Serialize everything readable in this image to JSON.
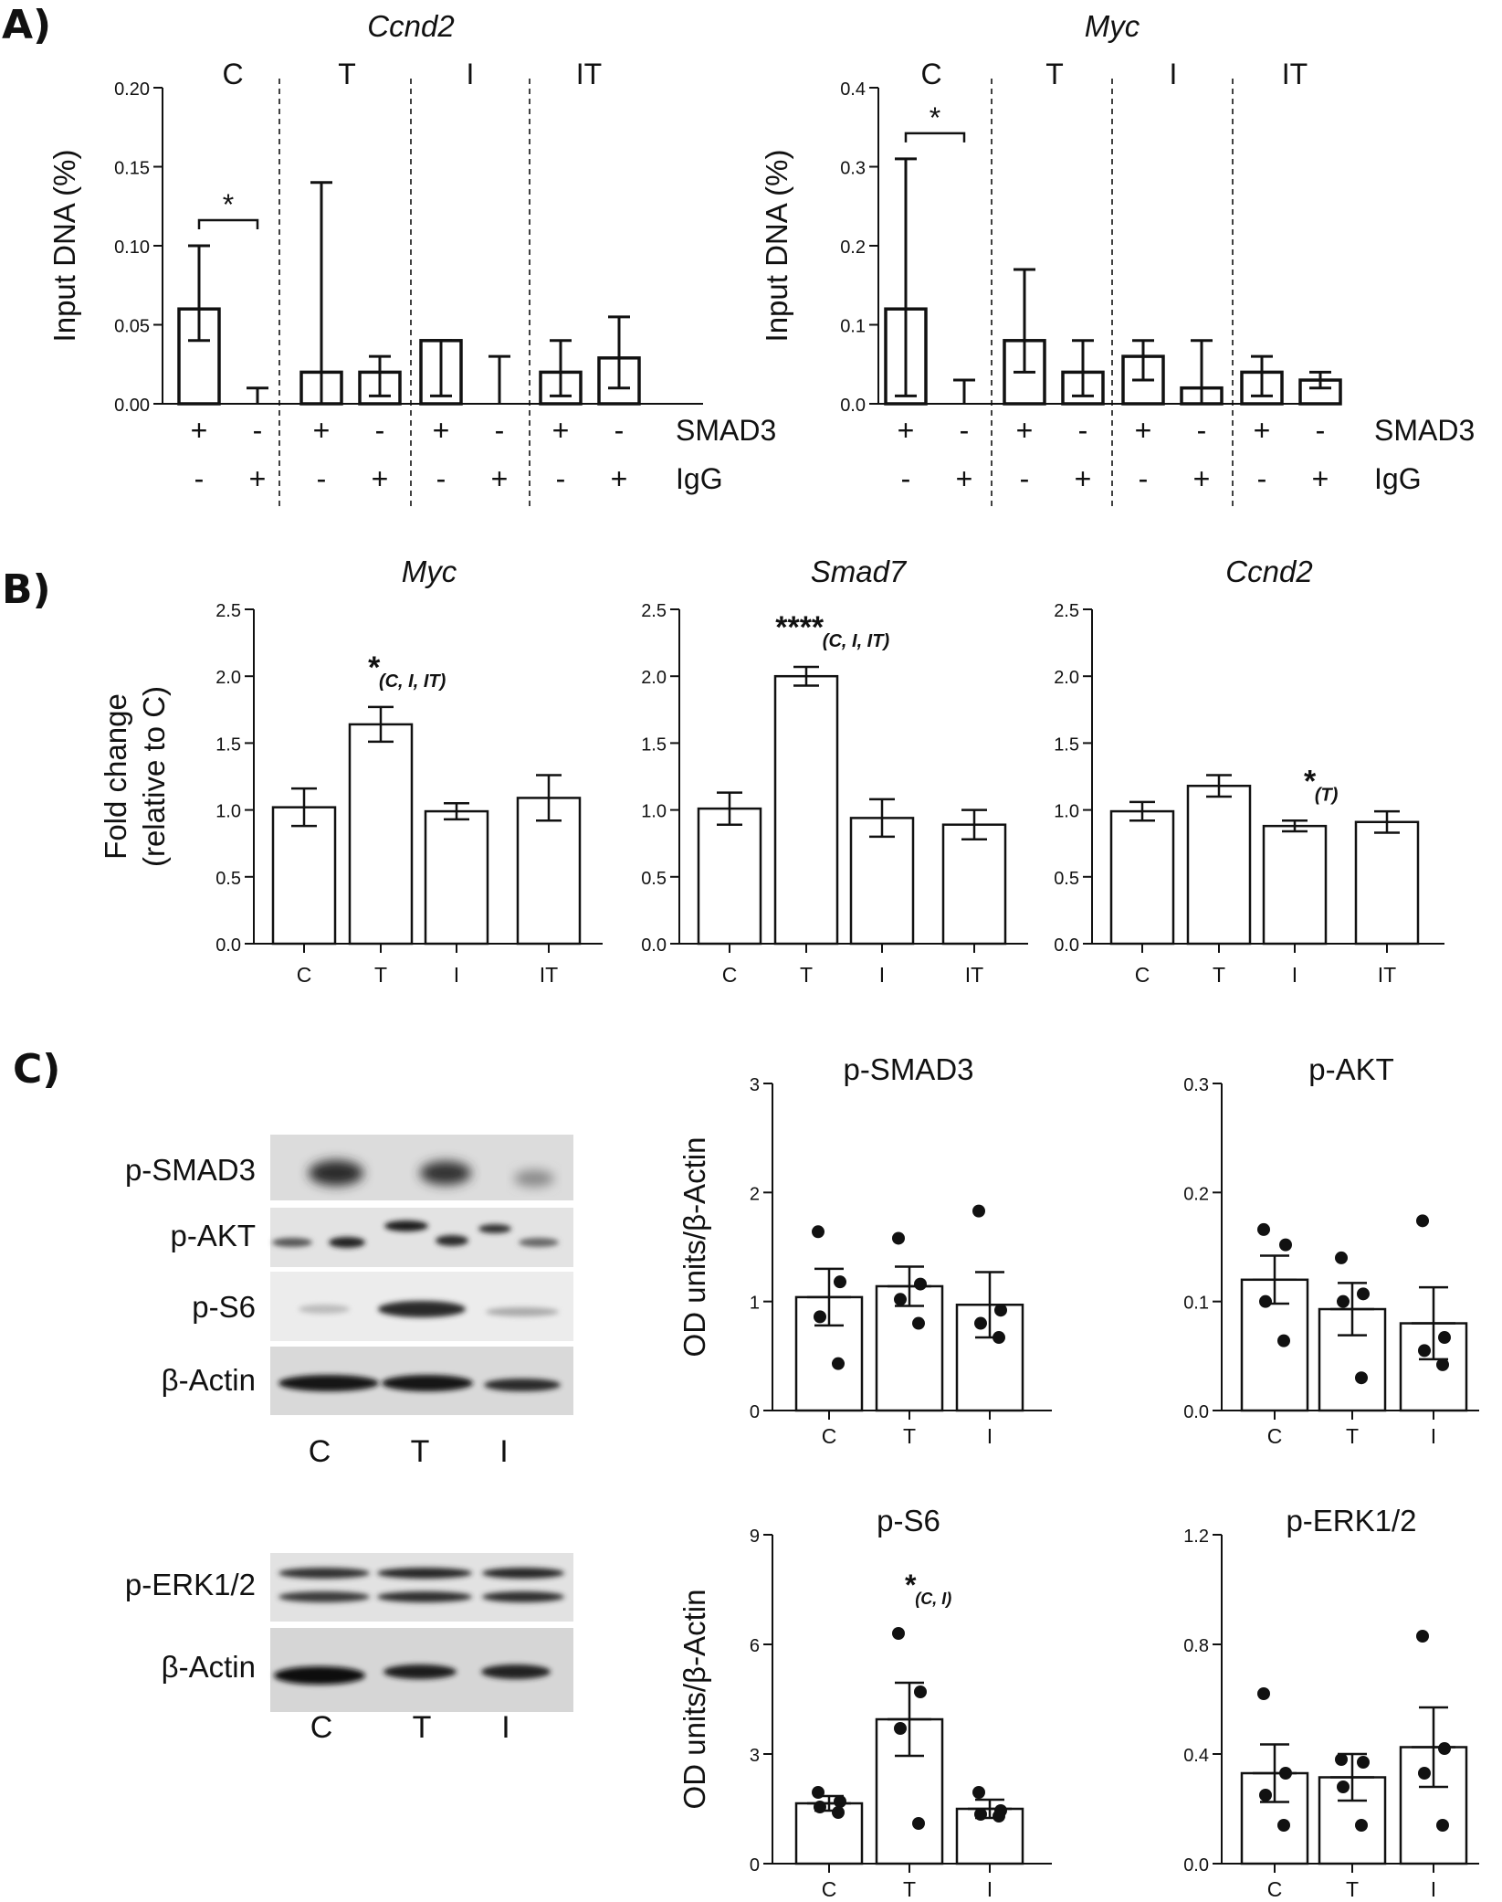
{
  "panels": {
    "a": "A)",
    "b": "B)",
    "c": "C)"
  },
  "chart_data": [
    {
      "id": "a1",
      "type": "bar",
      "title": "Ccnd2",
      "ylabel": "Input DNA (%)",
      "ylim": [
        0,
        0.2
      ],
      "yticks": [
        "0.00",
        "0.05",
        "0.10",
        "0.15",
        "0.20"
      ],
      "groups": [
        "C",
        "T",
        "I",
        "IT"
      ],
      "rows": [
        {
          "label": "SMAD3",
          "values": [
            "+",
            "-",
            "+",
            "-",
            "+",
            "-",
            "+",
            "-"
          ]
        },
        {
          "label": "IgG",
          "values": [
            "-",
            "+",
            "-",
            "+",
            "-",
            "+",
            "-",
            "+"
          ]
        }
      ],
      "values": [
        0.06,
        0.0,
        0.02,
        0.02,
        0.04,
        0.0,
        0.02,
        0.029
      ],
      "err_low": [
        0.04,
        0.0,
        0.0,
        0.005,
        0.005,
        0.0,
        0.005,
        0.01
      ],
      "err_high": [
        0.1,
        0.01,
        0.14,
        0.03,
        0.04,
        0.03,
        0.04,
        0.055
      ],
      "annotations": [
        {
          "text": "*",
          "bars": [
            0,
            1
          ]
        }
      ]
    },
    {
      "id": "a2",
      "type": "bar",
      "title": "Myc",
      "ylabel": "Input DNA (%)",
      "ylim": [
        0,
        0.4
      ],
      "yticks": [
        "0.0",
        "0.1",
        "0.2",
        "0.3",
        "0.4"
      ],
      "groups": [
        "C",
        "T",
        "I",
        "IT"
      ],
      "rows": [
        {
          "label": "SMAD3",
          "values": [
            "+",
            "-",
            "+",
            "-",
            "+",
            "-",
            "+",
            "-"
          ]
        },
        {
          "label": "IgG",
          "values": [
            "-",
            "+",
            "-",
            "+",
            "-",
            "+",
            "-",
            "+"
          ]
        }
      ],
      "values": [
        0.12,
        0.0,
        0.08,
        0.04,
        0.06,
        0.02,
        0.04,
        0.03
      ],
      "err_low": [
        0.01,
        0.0,
        0.04,
        0.01,
        0.03,
        0.0,
        0.01,
        0.02
      ],
      "err_high": [
        0.31,
        0.03,
        0.17,
        0.08,
        0.08,
        0.08,
        0.06,
        0.04
      ],
      "annotations": [
        {
          "text": "*",
          "bars": [
            0,
            1
          ]
        }
      ]
    },
    {
      "id": "b1",
      "type": "bar",
      "title": "Myc",
      "ylabel": "Fold change",
      "ylabel2": "(relative to C)",
      "ylim": [
        0,
        2.5
      ],
      "yticks": [
        "0.0",
        "0.5",
        "1.0",
        "1.5",
        "2.0",
        "2.5"
      ],
      "categories": [
        "C",
        "T",
        "I",
        "IT"
      ],
      "values": [
        1.02,
        1.64,
        0.99,
        1.09
      ],
      "err": [
        0.14,
        0.13,
        0.06,
        0.17
      ],
      "annotations": [
        {
          "bar": 1,
          "star": "*",
          "groups": "(C, I, IT)"
        }
      ]
    },
    {
      "id": "b2",
      "type": "bar",
      "title": "Smad7",
      "ylim": [
        0,
        2.5
      ],
      "yticks": [
        "0.0",
        "0.5",
        "1.0",
        "1.5",
        "2.0",
        "2.5"
      ],
      "categories": [
        "C",
        "T",
        "I",
        "IT"
      ],
      "values": [
        1.01,
        2.0,
        0.94,
        0.89
      ],
      "err": [
        0.12,
        0.07,
        0.14,
        0.11
      ],
      "annotations": [
        {
          "bar": 1,
          "star": "****",
          "groups": "(C, I, IT)"
        }
      ]
    },
    {
      "id": "b3",
      "type": "bar",
      "title": "Ccnd2",
      "ylim": [
        0,
        2.5
      ],
      "yticks": [
        "0.0",
        "0.5",
        "1.0",
        "1.5",
        "2.0",
        "2.5"
      ],
      "categories": [
        "C",
        "T",
        "I",
        "IT"
      ],
      "values": [
        0.99,
        1.18,
        0.88,
        0.91
      ],
      "err": [
        0.07,
        0.08,
        0.04,
        0.08
      ],
      "annotations": [
        {
          "bar": 2,
          "star": "*",
          "groups": "(T)"
        }
      ]
    },
    {
      "id": "c1",
      "type": "bar",
      "title": "p-SMAD3",
      "ylabel": "OD units/β-Actin",
      "ylim": [
        0,
        3
      ],
      "yticks": [
        "0",
        "1",
        "2",
        "3"
      ],
      "categories": [
        "C",
        "T",
        "I"
      ],
      "values": [
        1.04,
        1.14,
        0.97
      ],
      "err": [
        0.26,
        0.18,
        0.3
      ],
      "points": [
        [
          1.64,
          1.18,
          0.86,
          0.43
        ],
        [
          1.58,
          1.16,
          1.02,
          0.8
        ],
        [
          1.83,
          0.92,
          0.8,
          0.67
        ]
      ],
      "annotations": []
    },
    {
      "id": "c2",
      "type": "bar",
      "title": "p-AKT",
      "ylim": [
        0,
        0.3
      ],
      "yticks": [
        "0.0",
        "0.1",
        "0.2",
        "0.3"
      ],
      "categories": [
        "C",
        "T",
        "I"
      ],
      "values": [
        0.12,
        0.093,
        0.08
      ],
      "err": [
        0.022,
        0.024,
        0.033
      ],
      "points": [
        [
          0.166,
          0.152,
          0.1,
          0.064
        ],
        [
          0.14,
          0.107,
          0.1,
          0.03
        ],
        [
          0.174,
          0.067,
          0.055,
          0.042
        ]
      ],
      "annotations": []
    },
    {
      "id": "c3",
      "type": "bar",
      "title": "p-S6",
      "ylabel": "OD units/β-Actin",
      "ylim": [
        0,
        9
      ],
      "yticks": [
        "0",
        "3",
        "6",
        "9"
      ],
      "categories": [
        "C",
        "T",
        "I"
      ],
      "values": [
        1.65,
        3.95,
        1.5
      ],
      "err": [
        0.2,
        1.0,
        0.25
      ],
      "points": [
        [
          1.95,
          1.7,
          1.55,
          1.4
        ],
        [
          6.3,
          4.7,
          3.7,
          1.1
        ],
        [
          1.95,
          1.45,
          1.35,
          1.3
        ]
      ],
      "annotations": [
        {
          "bar": 1,
          "star": "*",
          "groups": "(C, I)"
        }
      ]
    },
    {
      "id": "c4",
      "type": "bar",
      "title": "p-ERK1/2",
      "ylim": [
        0,
        1.2
      ],
      "yticks": [
        "0.0",
        "0.4",
        "0.8",
        "1.2"
      ],
      "categories": [
        "C",
        "T",
        "I"
      ],
      "values": [
        0.33,
        0.315,
        0.425
      ],
      "err": [
        0.105,
        0.085,
        0.145
      ],
      "points": [
        [
          0.62,
          0.33,
          0.25,
          0.14
        ],
        [
          0.38,
          0.37,
          0.28,
          0.14
        ],
        [
          0.83,
          0.42,
          0.33,
          0.14
        ]
      ],
      "annotations": []
    }
  ],
  "blots": {
    "set1": {
      "labels": [
        "p-SMAD3",
        "p-AKT",
        "p-S6",
        "β-Actin"
      ],
      "lanes": [
        "C",
        "T",
        "I"
      ]
    },
    "set2": {
      "labels": [
        "p-ERK1/2",
        "β-Actin"
      ],
      "lanes": [
        "C",
        "T",
        "I"
      ]
    }
  }
}
